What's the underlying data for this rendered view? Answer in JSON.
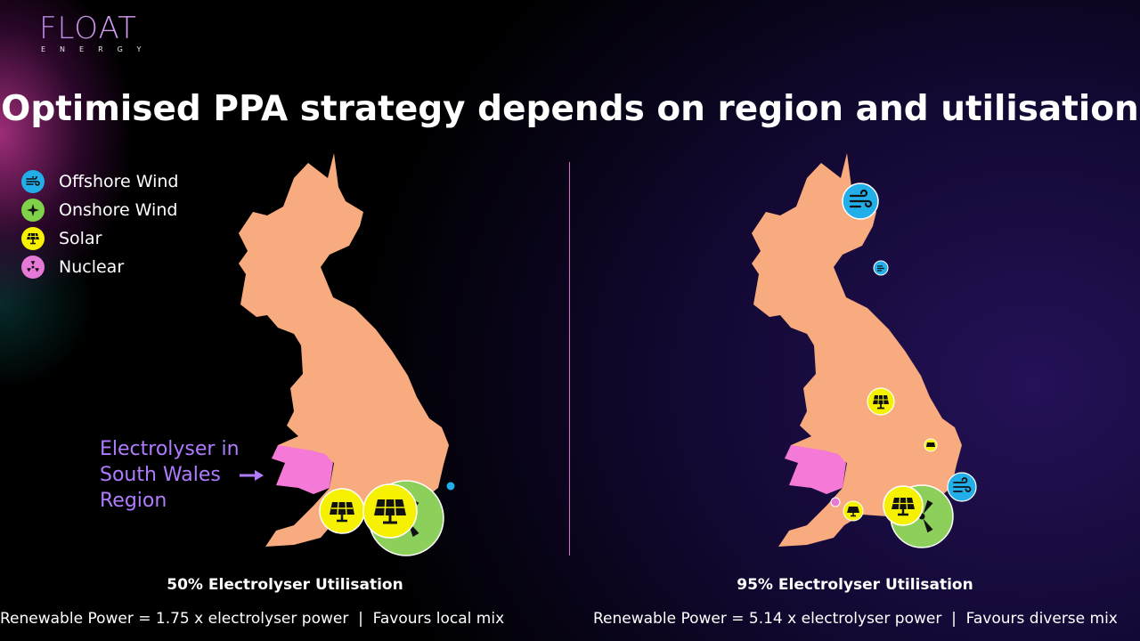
{
  "logo": {
    "wordmark": "FLOAT",
    "tagline": "ENERGY"
  },
  "title": "Optimised PPA strategy depends on region and utilisation",
  "legend": [
    {
      "label": "Offshore Wind",
      "icon": "wind-icon",
      "color": "#22aee8"
    },
    {
      "label": "Onshore Wind",
      "icon": "turbine-icon",
      "color": "#7fd24a"
    },
    {
      "label": "Solar",
      "icon": "solar-panel-icon",
      "color": "#f5f100"
    },
    {
      "label": "Nuclear",
      "icon": "radiation-icon",
      "color": "#e479d6"
    }
  ],
  "colors": {
    "land": "#f7ab7e",
    "wales": "#f57ad8",
    "divider": "#d874c4",
    "annotation": "#b07cff"
  },
  "annotation": {
    "lines": [
      "Electrolyser in",
      "South Wales",
      "Region"
    ]
  },
  "scenarios": [
    {
      "utilisation": "50% Electrolyser Utilisation",
      "power": "Renewable Power = 1.75 x electrolyser power  |  Favours local mix"
    },
    {
      "utilisation": "95% Electrolyser Utilisation",
      "power": "Renewable Power = 5.14 x electrolyser power  |  Favours diverse mix"
    }
  ]
}
